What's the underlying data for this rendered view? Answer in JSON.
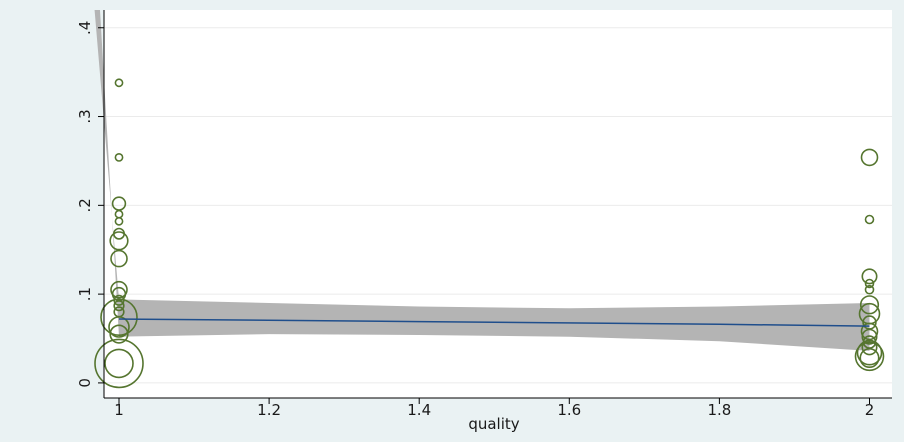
{
  "chart_data": {
    "type": "scatter",
    "xlabel": "quality",
    "ylabel": "",
    "xlim": [
      0.98,
      2.03
    ],
    "ylim": [
      -0.017,
      0.42
    ],
    "x_ticks": [
      1,
      1.2,
      1.4,
      1.6,
      1.8,
      2
    ],
    "x_tick_labels": [
      "1",
      "1.2",
      "1.4",
      "1.6",
      "1.8",
      "2"
    ],
    "y_ticks": [
      0,
      0.1,
      0.2,
      0.3,
      0.4
    ],
    "y_tick_labels": [
      "0",
      ".1",
      ".2",
      ".3",
      ".4"
    ],
    "grid": "horizontal",
    "marker_color": "#55752f",
    "fit_line_color": "#1f4e8c",
    "ci_band_color": "#b4b4b4",
    "points": [
      {
        "x": 1,
        "y": 0.338,
        "weight": 0.9
      },
      {
        "x": 1,
        "y": 0.254,
        "weight": 0.9
      },
      {
        "x": 1,
        "y": 0.202,
        "weight": 1.6
      },
      {
        "x": 1,
        "y": 0.19,
        "weight": 0.9
      },
      {
        "x": 1,
        "y": 0.182,
        "weight": 0.9
      },
      {
        "x": 1,
        "y": 0.168,
        "weight": 1.3
      },
      {
        "x": 1,
        "y": 0.16,
        "weight": 2.2
      },
      {
        "x": 1,
        "y": 0.14,
        "weight": 2.0
      },
      {
        "x": 1,
        "y": 0.105,
        "weight": 2.0
      },
      {
        "x": 1,
        "y": 0.1,
        "weight": 1.6
      },
      {
        "x": 1,
        "y": 0.093,
        "weight": 1.2
      },
      {
        "x": 1,
        "y": 0.087,
        "weight": 1.2
      },
      {
        "x": 1,
        "y": 0.08,
        "weight": 1.2
      },
      {
        "x": 1,
        "y": 0.074,
        "weight": 4.5
      },
      {
        "x": 1,
        "y": 0.063,
        "weight": 2.5
      },
      {
        "x": 1,
        "y": 0.055,
        "weight": 2.2
      },
      {
        "x": 1,
        "y": 0.022,
        "weight": 6.0
      },
      {
        "x": 1,
        "y": 0.022,
        "weight": 3.5
      },
      {
        "x": 2,
        "y": 0.254,
        "weight": 2.0
      },
      {
        "x": 2,
        "y": 0.184,
        "weight": 1.0
      },
      {
        "x": 2,
        "y": 0.12,
        "weight": 1.8
      },
      {
        "x": 2,
        "y": 0.112,
        "weight": 1.0
      },
      {
        "x": 2,
        "y": 0.105,
        "weight": 1.0
      },
      {
        "x": 2,
        "y": 0.088,
        "weight": 2.2
      },
      {
        "x": 2,
        "y": 0.078,
        "weight": 2.5
      },
      {
        "x": 2,
        "y": 0.068,
        "weight": 1.6
      },
      {
        "x": 2,
        "y": 0.058,
        "weight": 2.0
      },
      {
        "x": 2,
        "y": 0.052,
        "weight": 1.8
      },
      {
        "x": 2,
        "y": 0.046,
        "weight": 1.5
      },
      {
        "x": 2,
        "y": 0.04,
        "weight": 1.8
      },
      {
        "x": 2,
        "y": 0.034,
        "weight": 3.0
      },
      {
        "x": 2,
        "y": 0.03,
        "weight": 3.5
      },
      {
        "x": 2,
        "y": 0.028,
        "weight": 2.3
      }
    ],
    "fit_line": [
      {
        "x": 1,
        "y": 0.072
      },
      {
        "x": 1.4,
        "y": 0.069
      },
      {
        "x": 1.8,
        "y": 0.066
      },
      {
        "x": 2,
        "y": 0.064
      }
    ],
    "ci_upper": [
      {
        "x": 0.965,
        "y": 0.445
      },
      {
        "x": 1,
        "y": 0.094
      },
      {
        "x": 1.2,
        "y": 0.09
      },
      {
        "x": 1.4,
        "y": 0.086
      },
      {
        "x": 1.6,
        "y": 0.084
      },
      {
        "x": 1.8,
        "y": 0.086
      },
      {
        "x": 2,
        "y": 0.09
      }
    ],
    "ci_lower": [
      {
        "x": 2,
        "y": 0.036
      },
      {
        "x": 1.8,
        "y": 0.047
      },
      {
        "x": 1.6,
        "y": 0.052
      },
      {
        "x": 1.4,
        "y": 0.054
      },
      {
        "x": 1.2,
        "y": 0.055
      },
      {
        "x": 1,
        "y": 0.052
      },
      {
        "x": 0.973,
        "y": 0.445
      }
    ]
  }
}
